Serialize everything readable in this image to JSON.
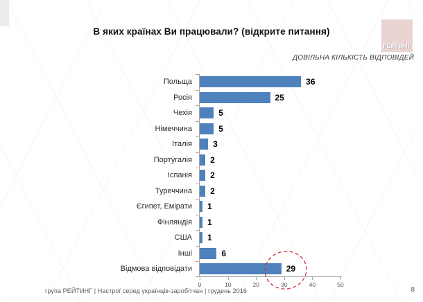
{
  "slide": {
    "title": "В яких країнах Ви працювали? (відкрите питання)",
    "note": "ДОВІЛЬНА КІЛЬКІСТЬ ВІДПОВІДЕЙ",
    "logo_text": "РЕЙТИНГ",
    "footer": "група РЕЙТИНГ |  Настрої серед українців-заробітчан  |  грудень 2016",
    "page_number": "8"
  },
  "colors": {
    "bar": "#4f81bd",
    "axis": "#a6a6a6",
    "highlight_circle": "#cc3333",
    "logo_bg": "#e9d4d2"
  },
  "chart_data": {
    "type": "bar",
    "orientation": "horizontal",
    "title": "В яких країнах Ви працювали? (відкрите питання)",
    "subtitle": "ДОВІЛЬНА КІЛЬКІСТЬ ВІДПОВІДЕЙ",
    "categories": [
      "Польща",
      "Росія",
      "Чехія",
      "Німеччина",
      "Італія",
      "Португалія",
      "Іспанія",
      "Туреччина",
      "Єгипет, Емірати",
      "Фінляндія",
      "США",
      "Інші",
      "Відмова відповідати"
    ],
    "values": [
      36,
      25,
      5,
      5,
      3,
      2,
      2,
      2,
      1,
      1,
      1,
      6,
      29
    ],
    "xlabel": "",
    "ylabel": "",
    "xlim": [
      0,
      50
    ],
    "xticks": [
      0,
      10,
      20,
      30,
      40,
      50
    ],
    "grid": false,
    "legend": false,
    "annotation": {
      "type": "dashed-ellipse",
      "highlighted_category": "Відмова відповідати",
      "highlighted_value": 29
    }
  }
}
